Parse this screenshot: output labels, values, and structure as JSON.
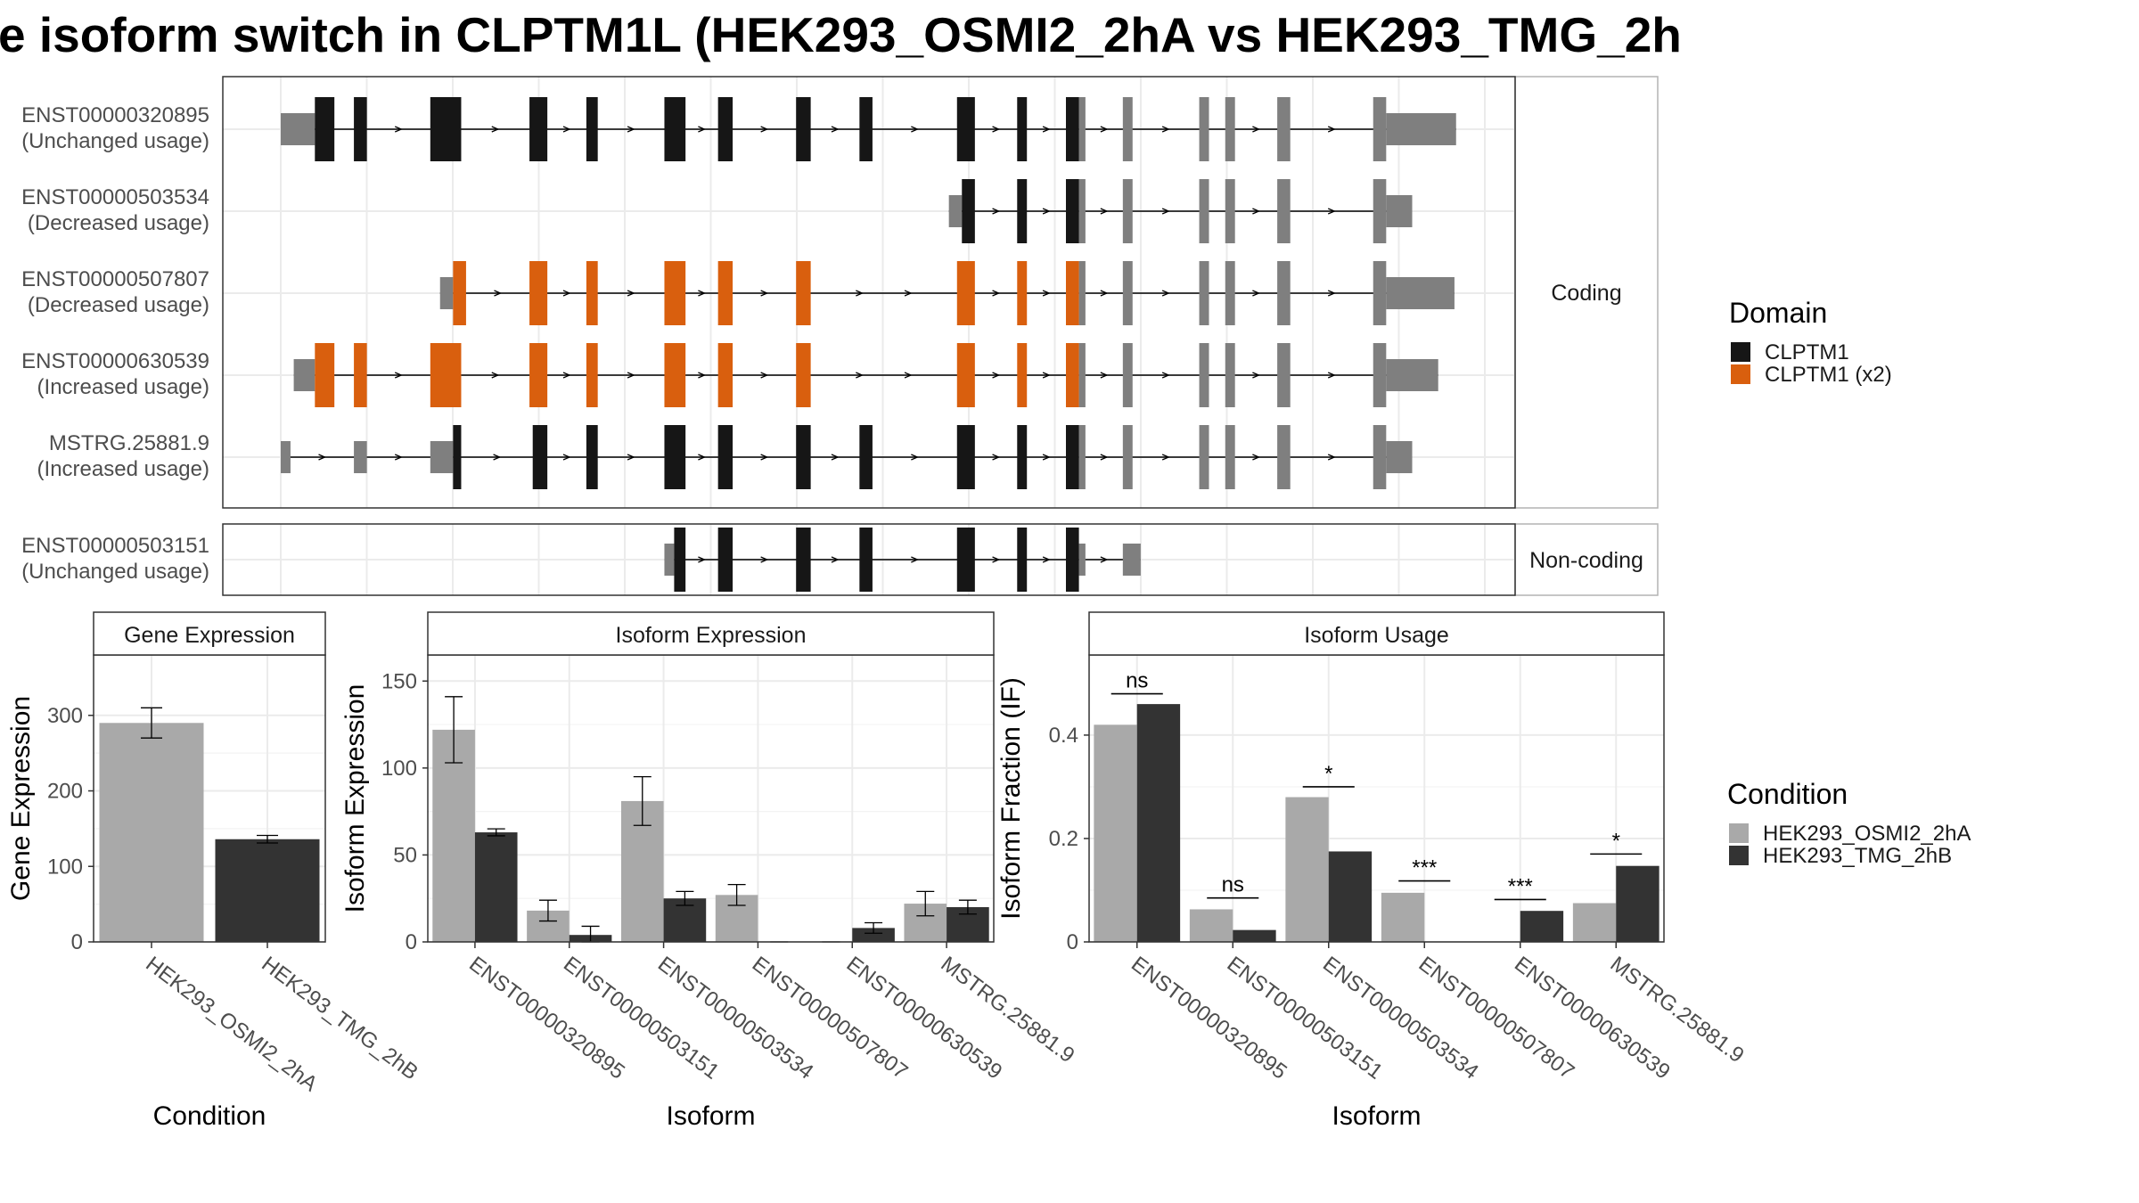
{
  "title": "e isoform switch in CLPTM1L (HEK293_OSMI2_2hA vs HEK293_TMG_2h",
  "colors": {
    "clptm1": "#161616",
    "clptm1_x2": "#d95f0e",
    "utr": "#7f7f7f",
    "cond1": "#a9a9a9",
    "cond2": "#333333",
    "grid": "#ebebeb",
    "panel_border": "#333333",
    "strip_border": "#b3b3b3"
  },
  "transcript_panels": {
    "coding_label": "Coding",
    "noncoding_label": "Non-coding"
  },
  "transcripts": [
    {
      "id": "ENST00000320895",
      "usage": "(Unchanged usage)",
      "group": "coding",
      "utr_left": [
        [
          0,
          21
        ]
      ],
      "utr_right": [
        [
          680,
          723
        ]
      ],
      "exons": [
        [
          21,
          33,
          "clptm1"
        ],
        [
          45,
          53,
          "clptm1"
        ],
        [
          92,
          111,
          "clptm1"
        ],
        [
          153,
          164,
          "clptm1"
        ],
        [
          188,
          195,
          "clptm1"
        ],
        [
          236,
          249,
          "clptm1"
        ],
        [
          269,
          278,
          "clptm1"
        ],
        [
          317,
          326,
          "clptm1"
        ],
        [
          356,
          364,
          "clptm1"
        ],
        [
          416,
          427,
          "clptm1"
        ],
        [
          453,
          459,
          "clptm1"
        ],
        [
          483,
          491,
          "clptm1"
        ]
      ],
      "cds_end": 491,
      "tail_exons": [
        [
          491,
          495
        ],
        [
          518,
          524
        ],
        [
          565,
          571
        ],
        [
          581,
          587
        ],
        [
          613,
          621
        ]
      ],
      "last_block": [
        672,
        680
      ]
    },
    {
      "id": "ENST00000503534",
      "usage": "(Decreased usage)",
      "group": "coding",
      "utr_left": [
        [
          411,
          419
        ]
      ],
      "utr_right": [
        [
          680,
          696
        ]
      ],
      "exons": [
        [
          419,
          427,
          "clptm1"
        ],
        [
          453,
          459,
          "clptm1"
        ],
        [
          483,
          491,
          "clptm1"
        ]
      ],
      "cds_end": 491,
      "tail_exons": [
        [
          491,
          495
        ],
        [
          518,
          524
        ],
        [
          565,
          571
        ],
        [
          581,
          587
        ],
        [
          613,
          621
        ]
      ],
      "last_block": [
        672,
        680
      ]
    },
    {
      "id": "ENST00000507807",
      "usage": "(Decreased usage)",
      "group": "coding",
      "utr_left": [
        [
          98,
          106
        ]
      ],
      "utr_right": [
        [
          680,
          722
        ]
      ],
      "exons": [
        [
          106,
          114,
          "clptm1_x2"
        ],
        [
          153,
          164,
          "clptm1_x2"
        ],
        [
          188,
          195,
          "clptm1_x2"
        ],
        [
          236,
          249,
          "clptm1_x2"
        ],
        [
          269,
          278,
          "clptm1_x2"
        ],
        [
          317,
          326,
          "clptm1_x2"
        ],
        [
          416,
          427,
          "clptm1_x2"
        ],
        [
          453,
          459,
          "clptm1_x2"
        ],
        [
          483,
          491,
          "clptm1_x2"
        ]
      ],
      "cds_end": 491,
      "tail_exons": [
        [
          491,
          495
        ],
        [
          518,
          524
        ],
        [
          565,
          571
        ],
        [
          581,
          587
        ],
        [
          613,
          621
        ]
      ],
      "last_block": [
        672,
        680
      ]
    },
    {
      "id": "ENST00000630539",
      "usage": "(Increased usage)",
      "group": "coding",
      "utr_left": [
        [
          8,
          21
        ]
      ],
      "utr_right": [
        [
          680,
          712
        ]
      ],
      "exons": [
        [
          21,
          33,
          "clptm1_x2"
        ],
        [
          45,
          53,
          "clptm1_x2"
        ],
        [
          92,
          111,
          "clptm1_x2"
        ],
        [
          153,
          164,
          "clptm1_x2"
        ],
        [
          188,
          195,
          "clptm1_x2"
        ],
        [
          236,
          249,
          "clptm1_x2"
        ],
        [
          269,
          278,
          "clptm1_x2"
        ],
        [
          317,
          326,
          "clptm1_x2"
        ],
        [
          416,
          427,
          "clptm1_x2"
        ],
        [
          453,
          459,
          "clptm1_x2"
        ],
        [
          483,
          491,
          "clptm1_x2"
        ]
      ],
      "cds_end": 491,
      "tail_exons": [
        [
          491,
          495
        ],
        [
          518,
          524
        ],
        [
          565,
          571
        ],
        [
          581,
          587
        ],
        [
          613,
          621
        ]
      ],
      "last_block": [
        672,
        680
      ]
    },
    {
      "id": "MSTRG.25881.9",
      "usage": "(Increased usage)",
      "group": "coding",
      "utr_left": [
        [
          0,
          6
        ],
        [
          45,
          53
        ],
        [
          92,
          106
        ]
      ],
      "utr_right": [
        [
          680,
          696
        ]
      ],
      "exons": [
        [
          106,
          111,
          "clptm1"
        ],
        [
          155,
          164,
          "clptm1"
        ],
        [
          188,
          195,
          "clptm1"
        ],
        [
          236,
          249,
          "clptm1"
        ],
        [
          269,
          278,
          "clptm1"
        ],
        [
          317,
          326,
          "clptm1"
        ],
        [
          356,
          364,
          "clptm1"
        ],
        [
          416,
          427,
          "clptm1"
        ],
        [
          453,
          459,
          "clptm1"
        ],
        [
          483,
          491,
          "clptm1"
        ]
      ],
      "cds_end": 491,
      "tail_exons": [
        [
          491,
          495
        ],
        [
          518,
          524
        ],
        [
          565,
          571
        ],
        [
          581,
          587
        ],
        [
          613,
          621
        ]
      ],
      "last_block": [
        672,
        680
      ]
    },
    {
      "id": "ENST00000503151",
      "usage": "(Unchanged usage)",
      "group": "noncoding",
      "utr_left": [
        [
          236,
          242
        ]
      ],
      "utr_right": [
        [
          491,
          495
        ],
        [
          518,
          529
        ]
      ],
      "exons": [
        [
          242,
          249,
          "clptm1"
        ],
        [
          269,
          278,
          "clptm1"
        ],
        [
          317,
          326,
          "clptm1"
        ],
        [
          356,
          364,
          "clptm1"
        ],
        [
          416,
          427,
          "clptm1"
        ],
        [
          453,
          459,
          "clptm1"
        ],
        [
          483,
          491,
          "clptm1"
        ]
      ],
      "cds_end": 529,
      "tail_exons": [],
      "last_block": null
    }
  ],
  "legend_domain": {
    "title": "Domain",
    "items": [
      {
        "label": "CLPTM1",
        "color": "#161616"
      },
      {
        "label": "CLPTM1 (x2)",
        "color": "#d95f0e"
      }
    ]
  },
  "legend_condition": {
    "title": "Condition",
    "items": [
      {
        "label": "HEK293_OSMI2_2hA",
        "color": "#a9a9a9"
      },
      {
        "label": "HEK293_TMG_2hB",
        "color": "#333333"
      }
    ]
  },
  "chart_data": [
    {
      "type": "bar",
      "title": "Gene Expression",
      "xlabel": "Condition",
      "ylabel": "Gene Expression",
      "ylim": [
        0,
        380
      ],
      "yticks": [
        0,
        100,
        200,
        300
      ],
      "categories": [
        "HEK293_OSMI2_2hA",
        "HEK293_TMG_2hB"
      ],
      "values": [
        290,
        136
      ],
      "errors": [
        20,
        5
      ],
      "colors": [
        "#a9a9a9",
        "#333333"
      ]
    },
    {
      "type": "bar",
      "title": "Isoform Expression",
      "xlabel": "Isoform",
      "ylabel": "Isoform Expression",
      "ylim": [
        0,
        165
      ],
      "yticks": [
        0,
        50,
        100,
        150
      ],
      "categories": [
        "ENST00000320895",
        "ENST00000503151",
        "ENST00000503534",
        "ENST00000507807",
        "ENST00000630539",
        "MSTRG.25881.9"
      ],
      "series": [
        {
          "name": "HEK293_OSMI2_2hA",
          "values": [
            122,
            18,
            81,
            27,
            0,
            22
          ],
          "errors": [
            19,
            6,
            14,
            6,
            0,
            7
          ]
        },
        {
          "name": "HEK293_TMG_2hB",
          "values": [
            63,
            4,
            25,
            0,
            8,
            20
          ],
          "errors": [
            2,
            5,
            4,
            0,
            3,
            4
          ]
        }
      ]
    },
    {
      "type": "bar",
      "title": "Isoform Usage",
      "xlabel": "Isoform",
      "ylabel": "Isoform Fraction (IF)",
      "ylim": [
        0,
        0.555
      ],
      "yticks": [
        0.0,
        0.2,
        0.4
      ],
      "categories": [
        "ENST00000320895",
        "ENST00000503151",
        "ENST00000503534",
        "ENST00000507807",
        "ENST00000630539",
        "MSTRG.25881.9"
      ],
      "series": [
        {
          "name": "HEK293_OSMI2_2hA",
          "values": [
            0.42,
            0.063,
            0.28,
            0.095,
            0.0,
            0.075
          ]
        },
        {
          "name": "HEK293_TMG_2hB",
          "values": [
            0.46,
            0.023,
            0.175,
            0.0,
            0.06,
            0.147
          ]
        }
      ],
      "significance": [
        {
          "label": "ns",
          "y": 0.48
        },
        {
          "label": "ns",
          "y": 0.085
        },
        {
          "label": "*",
          "y": 0.3
        },
        {
          "label": "***",
          "y": 0.118
        },
        {
          "label": "***",
          "y": 0.082
        },
        {
          "label": "*",
          "y": 0.17
        }
      ]
    }
  ]
}
